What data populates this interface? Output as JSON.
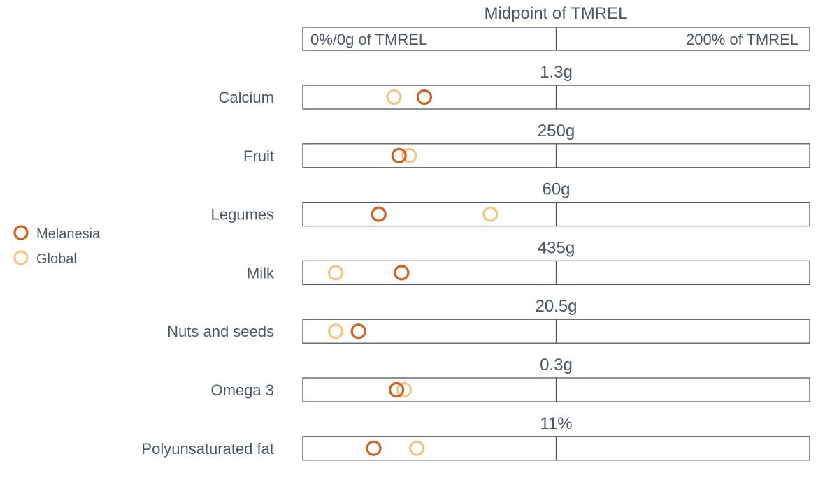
{
  "chart_data": {
    "type": "scatter",
    "title": "Midpoint of TMREL",
    "scale": {
      "left_label": "0%/0g of TMREL",
      "right_label": "200% of TMREL",
      "xlim": [
        0,
        200
      ],
      "unit": "% of TMREL"
    },
    "legend": {
      "position": "left"
    },
    "series": [
      {
        "name": "Melanesia",
        "color": "#d4601a",
        "values": [
          48,
          38,
          30,
          39,
          22,
          37,
          28
        ]
      },
      {
        "name": "Global",
        "color": "#f4c77f",
        "values": [
          36,
          42,
          74,
          13,
          13,
          40,
          45
        ]
      }
    ],
    "categories": [
      {
        "label": "Calcium",
        "midpoint": "1.3g"
      },
      {
        "label": "Fruit",
        "midpoint": "250g"
      },
      {
        "label": "Legumes",
        "midpoint": "60g"
      },
      {
        "label": "Milk",
        "midpoint": "435g"
      },
      {
        "label": "Nuts and seeds",
        "midpoint": "20.5g"
      },
      {
        "label": "Omega 3",
        "midpoint": "0.3g"
      },
      {
        "label": "Polyunsaturated fat",
        "midpoint": "11%"
      }
    ]
  }
}
